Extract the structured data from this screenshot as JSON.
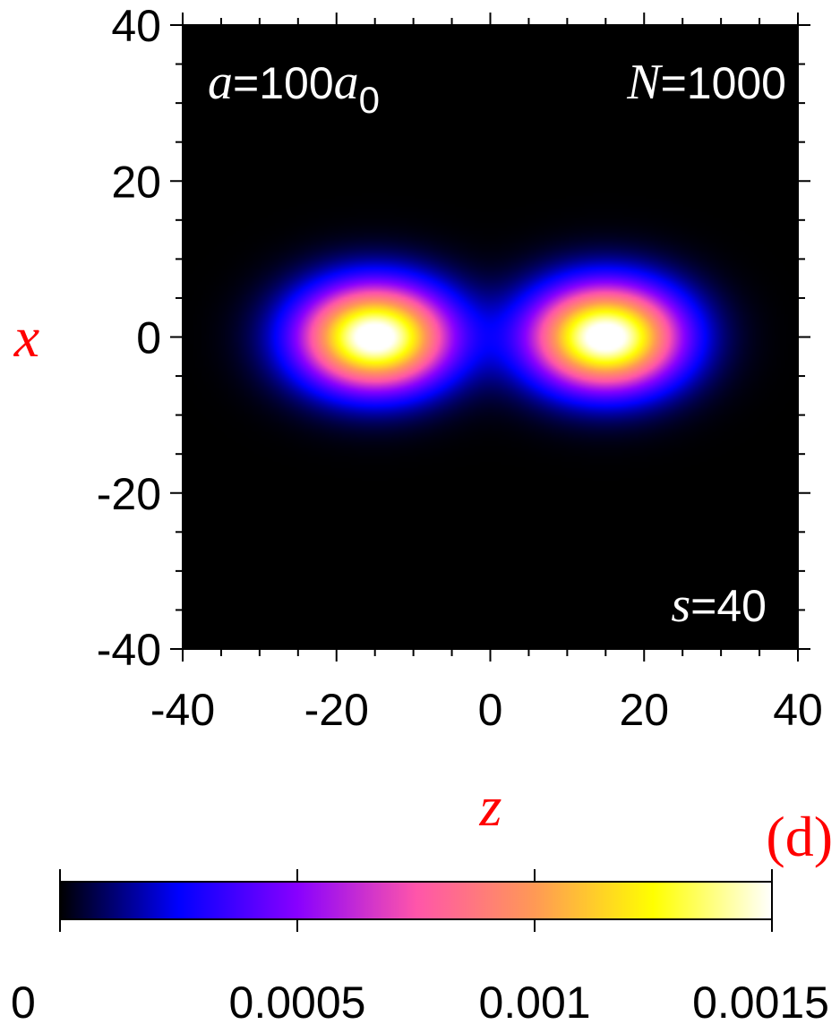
{
  "chart_data": {
    "type": "heatmap",
    "title": "",
    "xlabel": "z",
    "ylabel": "x",
    "panel_label": "(d)",
    "xlim": [
      -40,
      40
    ],
    "ylim": [
      -40,
      40
    ],
    "x_ticks": [
      "-40",
      "-20",
      "0",
      "20",
      "40"
    ],
    "y_ticks": [
      "40",
      "20",
      "0",
      "-20",
      "-40"
    ],
    "x_tick_values": [
      -40,
      -20,
      0,
      20,
      40
    ],
    "y_tick_values": [
      40,
      20,
      0,
      -20,
      -40
    ],
    "annotations": {
      "a_var": "a",
      "a_rest": "=100",
      "a_unit": "a",
      "a_sub": "0",
      "n_var": "N",
      "n_rest": "=1000",
      "s_var": "s",
      "s_rest": "=40"
    },
    "density_lobes": [
      {
        "z_center": -15,
        "x_center": 0,
        "z_width": 9.5,
        "x_width": 6.5,
        "peak": 0.0016
      },
      {
        "z_center": 15,
        "x_center": 0,
        "z_width": 9.5,
        "x_width": 6.5,
        "peak": 0.0016
      }
    ],
    "colorbar": {
      "range": [
        0,
        0.0015
      ],
      "tick_values": [
        0,
        0.0005,
        0.001,
        0.0015
      ],
      "tick_labels": [
        "0",
        "0.0005",
        "0.001",
        "0.0015"
      ],
      "colors": [
        "#000000",
        "#0000ff",
        "#8800ff",
        "#ff55aa",
        "#ff9955",
        "#ffff00",
        "#ffffff"
      ]
    }
  }
}
